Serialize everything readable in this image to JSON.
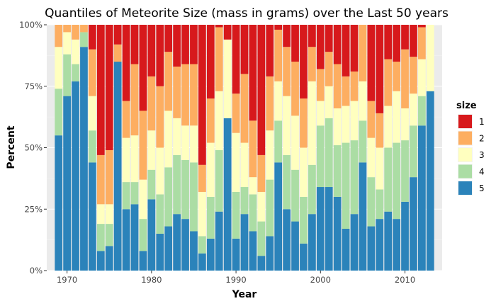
{
  "chart_data": {
    "type": "bar",
    "stacked": "percent",
    "title": "Quantiles of Meteorite Size (mass in grams) over the Last 50 years",
    "xlabel": "Year",
    "ylabel": "Percent",
    "xlim": [
      1967.6,
      2014.4
    ],
    "ylim": [
      0,
      1
    ],
    "x_ticks": [
      1970,
      1980,
      1990,
      2000,
      2010
    ],
    "x_tick_labels": [
      "1970",
      "1980",
      "1990",
      "2000",
      "2010"
    ],
    "y_ticks": [
      0,
      0.25,
      0.5,
      0.75,
      1
    ],
    "y_tick_labels": [
      "0%",
      "25%",
      "50%",
      "75%",
      "100%"
    ],
    "grid": true,
    "panel_background": "#ebebeb",
    "legend": {
      "title": "size",
      "position": "right",
      "entries": [
        {
          "label": "1",
          "color": "#d7191c"
        },
        {
          "label": "2",
          "color": "#fdae61"
        },
        {
          "label": "3",
          "color": "#ffffbf"
        },
        {
          "label": "4",
          "color": "#abdda4"
        },
        {
          "label": "5",
          "color": "#2b83ba"
        }
      ]
    },
    "x": [
      1969,
      1970,
      1971,
      1972,
      1973,
      1974,
      1975,
      1976,
      1977,
      1978,
      1979,
      1980,
      1981,
      1982,
      1983,
      1984,
      1985,
      1986,
      1987,
      1988,
      1989,
      1990,
      1991,
      1992,
      1993,
      1994,
      1995,
      1996,
      1997,
      1998,
      1999,
      2000,
      2001,
      2002,
      2003,
      2004,
      2005,
      2006,
      2007,
      2008,
      2009,
      2010,
      2011,
      2012,
      2013
    ],
    "series": [
      {
        "name": "5",
        "color": "#2b83ba",
        "values": [
          0.55,
          0.71,
          0.77,
          0.91,
          0.44,
          0.08,
          0.1,
          0.85,
          0.25,
          0.27,
          0.08,
          0.29,
          0.15,
          0.18,
          0.23,
          0.21,
          0.16,
          0.07,
          0.13,
          0.24,
          0.62,
          0.13,
          0.23,
          0.16,
          0.06,
          0.14,
          0.44,
          0.25,
          0.2,
          0.11,
          0.23,
          0.34,
          0.34,
          0.3,
          0.17,
          0.23,
          0.44,
          0.18,
          0.21,
          0.24,
          0.21,
          0.28,
          0.38,
          0.59,
          0.73
        ]
      },
      {
        "name": "4",
        "color": "#abdda4",
        "values": [
          0.19,
          0.17,
          0.07,
          0.06,
          0.13,
          0.11,
          0.09,
          0.0,
          0.11,
          0.09,
          0.13,
          0.12,
          0.16,
          0.24,
          0.24,
          0.24,
          0.28,
          0.07,
          0.17,
          0.25,
          0.0,
          0.19,
          0.11,
          0.15,
          0.14,
          0.23,
          0.17,
          0.22,
          0.21,
          0.19,
          0.2,
          0.25,
          0.28,
          0.21,
          0.35,
          0.3,
          0.17,
          0.2,
          0.12,
          0.26,
          0.31,
          0.25,
          0.21,
          0.12,
          0.0
        ]
      },
      {
        "name": "3",
        "color": "#ffffbf",
        "values": [
          0.17,
          0.09,
          0.1,
          0.0,
          0.14,
          0.08,
          0.08,
          0.0,
          0.18,
          0.19,
          0.16,
          0.16,
          0.19,
          0.23,
          0.15,
          0.14,
          0.15,
          0.18,
          0.22,
          0.24,
          0.32,
          0.24,
          0.18,
          0.07,
          0.12,
          0.2,
          0.16,
          0.24,
          0.22,
          0.2,
          0.34,
          0.1,
          0.13,
          0.15,
          0.15,
          0.16,
          0.16,
          0.16,
          0.17,
          0.17,
          0.21,
          0.13,
          0.13,
          0.15,
          0.27
        ]
      },
      {
        "name": "2",
        "color": "#fdae61",
        "values": [
          0.09,
          0.03,
          0.06,
          0.03,
          0.19,
          0.2,
          0.22,
          0.07,
          0.15,
          0.29,
          0.28,
          0.22,
          0.25,
          0.24,
          0.21,
          0.25,
          0.25,
          0.11,
          0.18,
          0.26,
          0.0,
          0.16,
          0.28,
          0.23,
          0.15,
          0.22,
          0.21,
          0.2,
          0.22,
          0.2,
          0.14,
          0.13,
          0.14,
          0.18,
          0.12,
          0.12,
          0.23,
          0.15,
          0.14,
          0.19,
          0.12,
          0.24,
          0.15,
          0.13,
          0.0
        ]
      },
      {
        "name": "1",
        "color": "#d7191c",
        "values": [
          0.0,
          0.0,
          0.0,
          0.0,
          0.1,
          0.53,
          0.51,
          0.08,
          0.31,
          0.16,
          0.35,
          0.21,
          0.25,
          0.11,
          0.17,
          0.16,
          0.16,
          0.57,
          0.3,
          0.01,
          0.06,
          0.28,
          0.2,
          0.39,
          0.53,
          0.21,
          0.02,
          0.09,
          0.15,
          0.3,
          0.09,
          0.18,
          0.11,
          0.16,
          0.21,
          0.19,
          0.0,
          0.31,
          0.36,
          0.14,
          0.15,
          0.1,
          0.13,
          0.01,
          0.0
        ]
      }
    ]
  }
}
